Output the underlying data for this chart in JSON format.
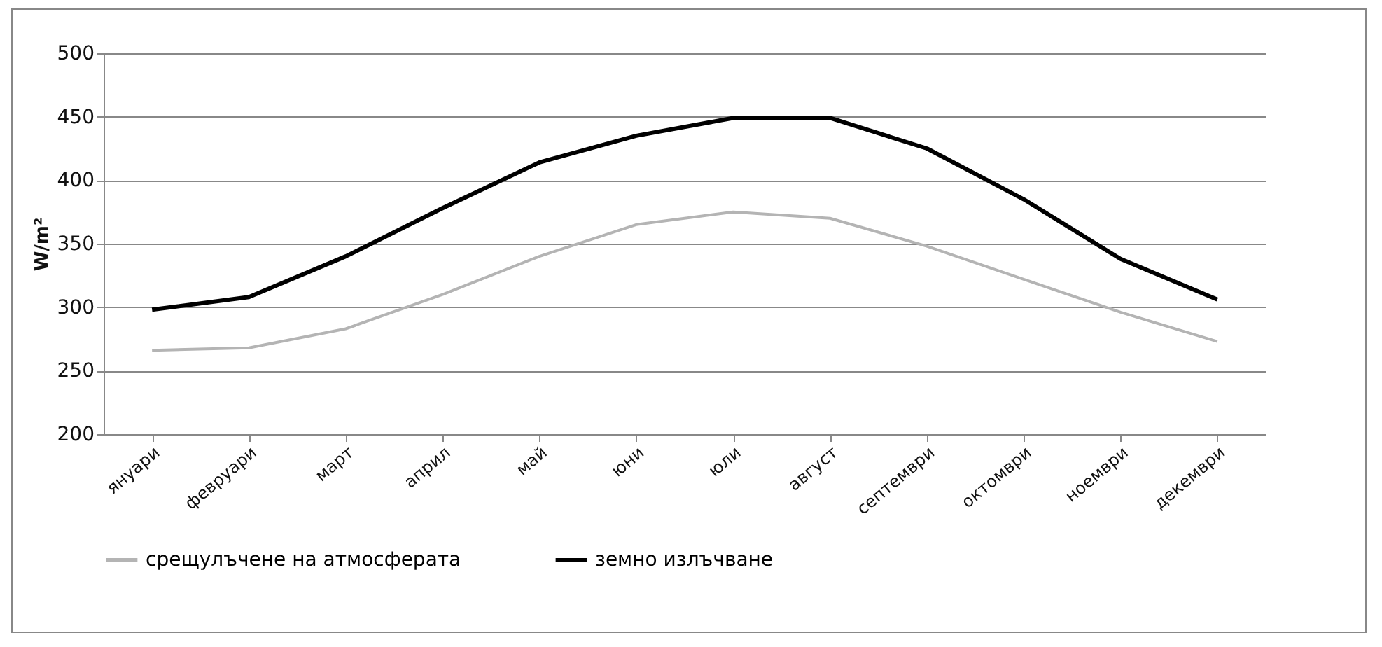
{
  "chart_data": {
    "type": "line",
    "ylabel": "W/m²",
    "categories": [
      "януари",
      "февруари",
      "март",
      "април",
      "май",
      "юни",
      "юли",
      "август",
      "септември",
      "октомври",
      "ноември",
      "декември"
    ],
    "series": [
      {
        "name": "срещулъчене на атмосферата",
        "color": "#b4b4b4",
        "values": [
          266,
          268,
          283,
          310,
          340,
          365,
          375,
          370,
          348,
          322,
          296,
          273
        ]
      },
      {
        "name": "земно излъчване",
        "color": "#000000",
        "values": [
          298,
          308,
          340,
          378,
          414,
          435,
          449,
          449,
          425,
          385,
          338,
          306
        ]
      }
    ],
    "ylim": [
      200,
      500
    ],
    "yticks": [
      200,
      250,
      300,
      350,
      400,
      450,
      500
    ],
    "grid": "y",
    "legend": "bottom",
    "marker": "none",
    "line_style": "solid"
  }
}
